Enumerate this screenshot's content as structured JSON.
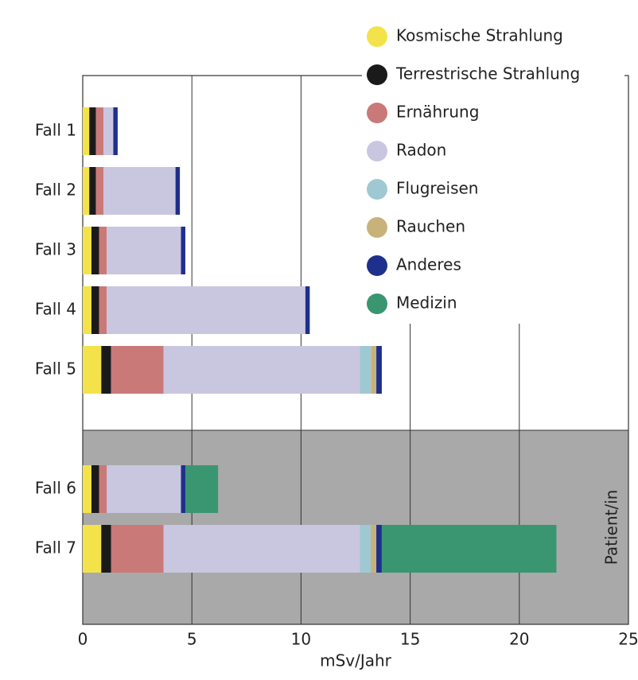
{
  "chart_data": {
    "type": "stacked_barh",
    "categories": [
      "Fall 1",
      "Fall 2",
      "Fall 3",
      "Fall 4",
      "Fall 5",
      "Fall 6",
      "Fall 7"
    ],
    "series": [
      {
        "name": "Kosmische Strahlung",
        "color": "#f3e24a",
        "values": [
          0.3,
          0.3,
          0.4,
          0.4,
          0.85,
          0.4,
          0.85
        ]
      },
      {
        "name": "Terrestrische Strahlung",
        "color": "#1a1a1a",
        "values": [
          0.3,
          0.3,
          0.35,
          0.35,
          0.45,
          0.35,
          0.45
        ]
      },
      {
        "name": "Ernährung",
        "color": "#c97a78",
        "values": [
          0.35,
          0.35,
          0.35,
          0.35,
          2.4,
          0.35,
          2.4
        ]
      },
      {
        "name": "Radon",
        "color": "#c9c6e0",
        "values": [
          0.45,
          3.3,
          3.4,
          9.1,
          9.0,
          3.4,
          9.0
        ]
      },
      {
        "name": "Flugreisen",
        "color": "#9fc9d2",
        "values": [
          0,
          0,
          0,
          0,
          0.5,
          0,
          0.5
        ]
      },
      {
        "name": "Rauchen",
        "color": "#c9b27a",
        "values": [
          0,
          0,
          0,
          0,
          0.25,
          0,
          0.25
        ]
      },
      {
        "name": "Anderes",
        "color": "#1f2f8c",
        "values": [
          0.2,
          0.2,
          0.2,
          0.2,
          0.25,
          0.2,
          0.25
        ]
      },
      {
        "name": "Medizin",
        "color": "#3a9670",
        "values": [
          0,
          0,
          0,
          0,
          0,
          1.5,
          8.0
        ]
      }
    ],
    "xlabel": "mSv/Jahr",
    "annotation": "Patient/in",
    "xlim": [
      0,
      25
    ],
    "xticks": [
      0,
      5,
      10,
      15,
      20,
      25
    ],
    "grid": true
  }
}
